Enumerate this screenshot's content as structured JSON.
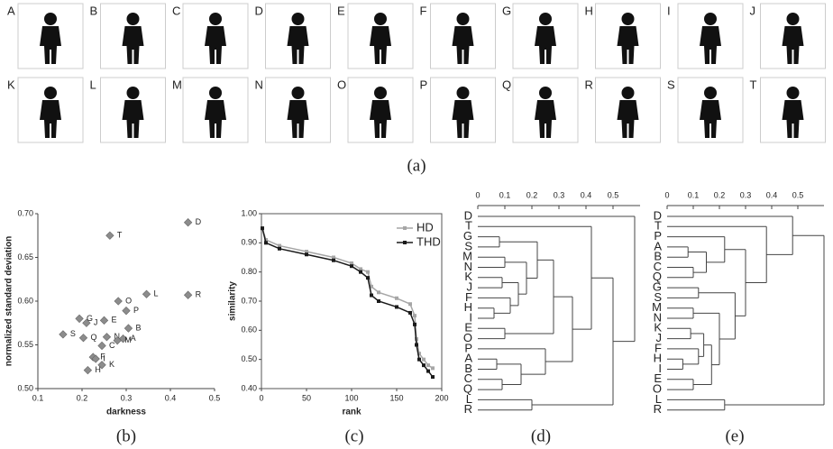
{
  "panel_a": {
    "labels": [
      "A",
      "B",
      "C",
      "D",
      "E",
      "F",
      "G",
      "H",
      "I",
      "J",
      "K",
      "L",
      "M",
      "N",
      "O",
      "P",
      "Q",
      "R",
      "S",
      "T"
    ],
    "caption": "(a)"
  },
  "chart_data": [
    {
      "type": "scatter",
      "caption": "(b)",
      "xlabel": "darkness",
      "ylabel": "normalized standard deviation",
      "xlim": [
        0.1,
        0.5
      ],
      "xticks": [
        0.1,
        0.2,
        0.3,
        0.4,
        0.5
      ],
      "ylim": [
        0.5,
        0.7
      ],
      "yticks": [
        {
          "value": 0.5,
          "label": "0.50"
        },
        0.55,
        {
          "value": 0.6,
          "label": "0.60"
        },
        0.65,
        {
          "value": 0.7,
          "label": "0.70"
        }
      ],
      "color": "#8c8c8c",
      "labels": [
        "T",
        "D",
        "R",
        "L",
        "O",
        "P",
        "G",
        "S",
        "J",
        "E",
        "Q",
        "N",
        "B",
        "A",
        "C",
        "M",
        "F",
        "I",
        "K",
        "H"
      ],
      "x": [
        0.263,
        0.44,
        0.44,
        0.346,
        0.282,
        0.3,
        0.194,
        0.157,
        0.21,
        0.25,
        0.203,
        0.256,
        0.305,
        0.293,
        0.245,
        0.28,
        0.225,
        0.231,
        0.245,
        0.213
      ],
      "y": [
        0.675,
        0.69,
        0.607,
        0.608,
        0.6,
        0.589,
        0.58,
        0.562,
        0.575,
        0.578,
        0.558,
        0.559,
        0.569,
        0.557,
        0.549,
        0.555,
        0.536,
        0.534,
        0.527,
        0.521
      ]
    },
    {
      "type": "line",
      "caption": "(c)",
      "xlabel": "rank",
      "ylabel": "similarity",
      "xlim": [
        0,
        200
      ],
      "xticks": [
        0,
        50,
        100,
        150,
        200
      ],
      "ylim": [
        0.4,
        1.0
      ],
      "yticks": [
        {
          "value": 0.4,
          "label": "0.40"
        },
        {
          "value": 0.5,
          "label": "0.50"
        },
        {
          "value": 0.6,
          "label": "0.60"
        },
        {
          "value": 0.7,
          "label": "0.70"
        },
        {
          "value": 0.8,
          "label": "0.80"
        },
        {
          "value": 0.9,
          "label": "0.90"
        },
        {
          "value": 1.0,
          "label": "1.00"
        }
      ],
      "x": [
        1,
        5,
        20,
        50,
        80,
        100,
        110,
        118,
        122,
        130,
        150,
        165,
        170,
        172,
        175,
        180,
        185,
        190
      ],
      "series": [
        {
          "name": "HD",
          "color": "#a6a6a6",
          "values": [
            0.95,
            0.91,
            0.89,
            0.87,
            0.85,
            0.83,
            0.81,
            0.8,
            0.75,
            0.73,
            0.71,
            0.69,
            0.65,
            0.57,
            0.52,
            0.5,
            0.48,
            0.47
          ]
        },
        {
          "name": "THD",
          "color": "#1a1a1a",
          "values": [
            0.95,
            0.9,
            0.88,
            0.86,
            0.84,
            0.82,
            0.8,
            0.78,
            0.72,
            0.7,
            0.68,
            0.66,
            0.62,
            0.55,
            0.5,
            0.48,
            0.46,
            0.44
          ]
        }
      ]
    },
    {
      "type": "dendrogram",
      "caption": "(d)",
      "xlim": [
        0,
        0.6
      ],
      "xticks": [
        0,
        0.1,
        0.2,
        0.3,
        0.4,
        0.5
      ],
      "tree": {
        "height": 0.58,
        "children": [
          {
            "label": "D"
          },
          {
            "height": 0.5,
            "children": [
              {
                "height": 0.42,
                "children": [
                  {
                    "label": "T"
                  },
                  {
                    "height": 0.35,
                    "children": [
                      {
                        "height": 0.28,
                        "children": [
                          {
                            "height": 0.22,
                            "children": [
                              {
                                "height": 0.08,
                                "children": [
                                  {
                                    "label": "G"
                                  },
                                  {
                                    "label": "S"
                                  }
                                ]
                              },
                              {
                                "height": 0.18,
                                "children": [
                                  {
                                    "height": 0.1,
                                    "children": [
                                      {
                                        "label": "M"
                                      },
                                      {
                                        "label": "N"
                                      }
                                    ]
                                  },
                                  {
                                    "height": 0.15,
                                    "children": [
                                      {
                                        "height": 0.09,
                                        "children": [
                                          {
                                            "label": "K"
                                          },
                                          {
                                            "label": "J"
                                          }
                                        ]
                                      },
                                      {
                                        "height": 0.12,
                                        "children": [
                                          {
                                            "label": "F"
                                          },
                                          {
                                            "height": 0.06,
                                            "children": [
                                              {
                                                "label": "H"
                                              },
                                              {
                                                "label": "I"
                                              }
                                            ]
                                          }
                                        ]
                                      }
                                    ]
                                  }
                                ]
                              }
                            ]
                          },
                          {
                            "height": 0.1,
                            "children": [
                              {
                                "label": "E"
                              },
                              {
                                "label": "O"
                              }
                            ]
                          }
                        ]
                      },
                      {
                        "height": 0.25,
                        "children": [
                          {
                            "label": "P"
                          },
                          {
                            "height": 0.16,
                            "children": [
                              {
                                "height": 0.07,
                                "children": [
                                  {
                                    "label": "A"
                                  },
                                  {
                                    "label": "B"
                                  }
                                ]
                              },
                              {
                                "height": 0.09,
                                "children": [
                                  {
                                    "label": "C"
                                  },
                                  {
                                    "label": "Q"
                                  }
                                ]
                              }
                            ]
                          }
                        ]
                      }
                    ]
                  }
                ]
              },
              {
                "height": 0.2,
                "children": [
                  {
                    "label": "L"
                  },
                  {
                    "label": "R"
                  }
                ]
              }
            ]
          }
        ]
      }
    },
    {
      "type": "dendrogram",
      "caption": "(e)",
      "xlim": [
        0,
        0.6
      ],
      "xticks": [
        0,
        0.1,
        0.2,
        0.3,
        0.4,
        0.5
      ],
      "tree": {
        "height": 0.6,
        "children": [
          {
            "height": 0.48,
            "children": [
              {
                "label": "D"
              },
              {
                "height": 0.38,
                "children": [
                  {
                    "label": "T"
                  },
                  {
                    "height": 0.3,
                    "children": [
                      {
                        "height": 0.22,
                        "children": [
                          {
                            "label": "P"
                          },
                          {
                            "height": 0.15,
                            "children": [
                              {
                                "height": 0.08,
                                "children": [
                                  {
                                    "label": "A"
                                  },
                                  {
                                    "label": "B"
                                  }
                                ]
                              },
                              {
                                "height": 0.1,
                                "children": [
                                  {
                                    "label": "C"
                                  },
                                  {
                                    "label": "Q"
                                  }
                                ]
                              }
                            ]
                          }
                        ]
                      },
                      {
                        "height": 0.26,
                        "children": [
                          {
                            "height": 0.12,
                            "children": [
                              {
                                "label": "G"
                              },
                              {
                                "label": "S"
                              }
                            ]
                          },
                          {
                            "height": 0.2,
                            "children": [
                              {
                                "height": 0.1,
                                "children": [
                                  {
                                    "label": "M"
                                  },
                                  {
                                    "label": "N"
                                  }
                                ]
                              },
                              {
                                "height": 0.17,
                                "children": [
                                  {
                                    "height": 0.14,
                                    "children": [
                                      {
                                        "height": 0.09,
                                        "children": [
                                          {
                                            "label": "K"
                                          },
                                          {
                                            "label": "J"
                                          }
                                        ]
                                      },
                                      {
                                        "height": 0.12,
                                        "children": [
                                          {
                                            "label": "F"
                                          },
                                          {
                                            "height": 0.06,
                                            "children": [
                                              {
                                                "label": "H"
                                              },
                                              {
                                                "label": "I"
                                              }
                                            ]
                                          }
                                        ]
                                      }
                                    ]
                                  },
                                  {
                                    "height": 0.1,
                                    "children": [
                                      {
                                        "label": "E"
                                      },
                                      {
                                        "label": "O"
                                      }
                                    ]
                                  }
                                ]
                              }
                            ]
                          }
                        ]
                      }
                    ]
                  }
                ]
              }
            ]
          },
          {
            "height": 0.22,
            "children": [
              {
                "label": "L"
              },
              {
                "label": "R"
              }
            ]
          }
        ]
      }
    }
  ]
}
